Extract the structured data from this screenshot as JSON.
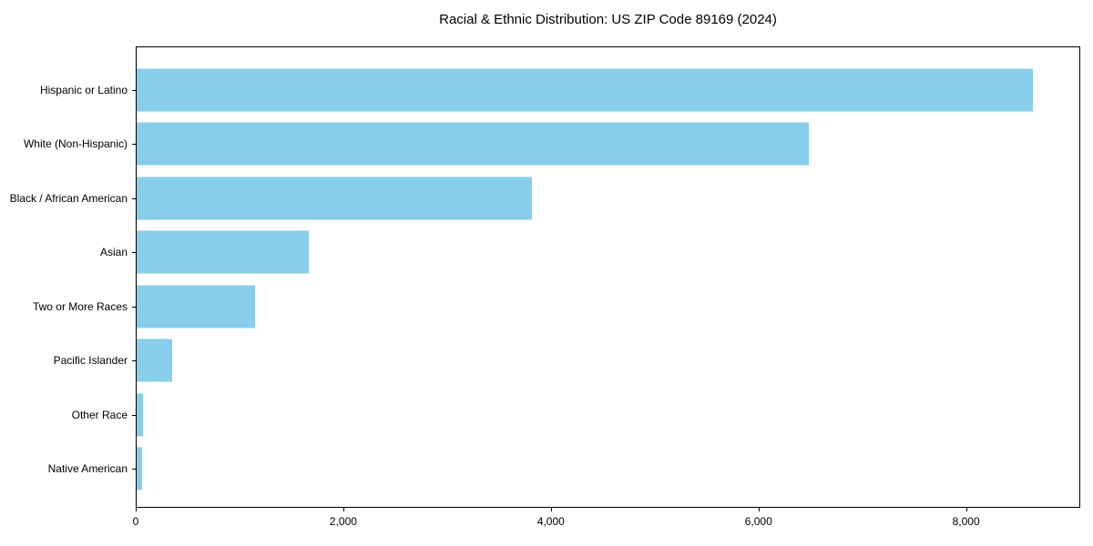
{
  "chart_data": {
    "type": "bar",
    "orientation": "horizontal",
    "title": "Racial & Ethnic Distribution: US ZIP Code 89169 (2024)",
    "categories": [
      "Hispanic or Latino",
      "White (Non-Hispanic)",
      "Black / African American",
      "Asian",
      "Two or More Races",
      "Pacific Islander",
      "Other Race",
      "Native American"
    ],
    "values": [
      8655,
      6490,
      3815,
      1660,
      1140,
      345,
      65,
      55
    ],
    "xlabel": "",
    "ylabel": "",
    "xlim": [
      0,
      9100
    ],
    "xticks": [
      0,
      2000,
      4000,
      6000,
      8000
    ],
    "xtick_labels": [
      "0",
      "2,000",
      "4,000",
      "6,000",
      "8,000"
    ],
    "bar_color": "#87CEEB",
    "grid": false,
    "legend": null,
    "background_color": "#ffffff",
    "frame_color": "#000000"
  }
}
